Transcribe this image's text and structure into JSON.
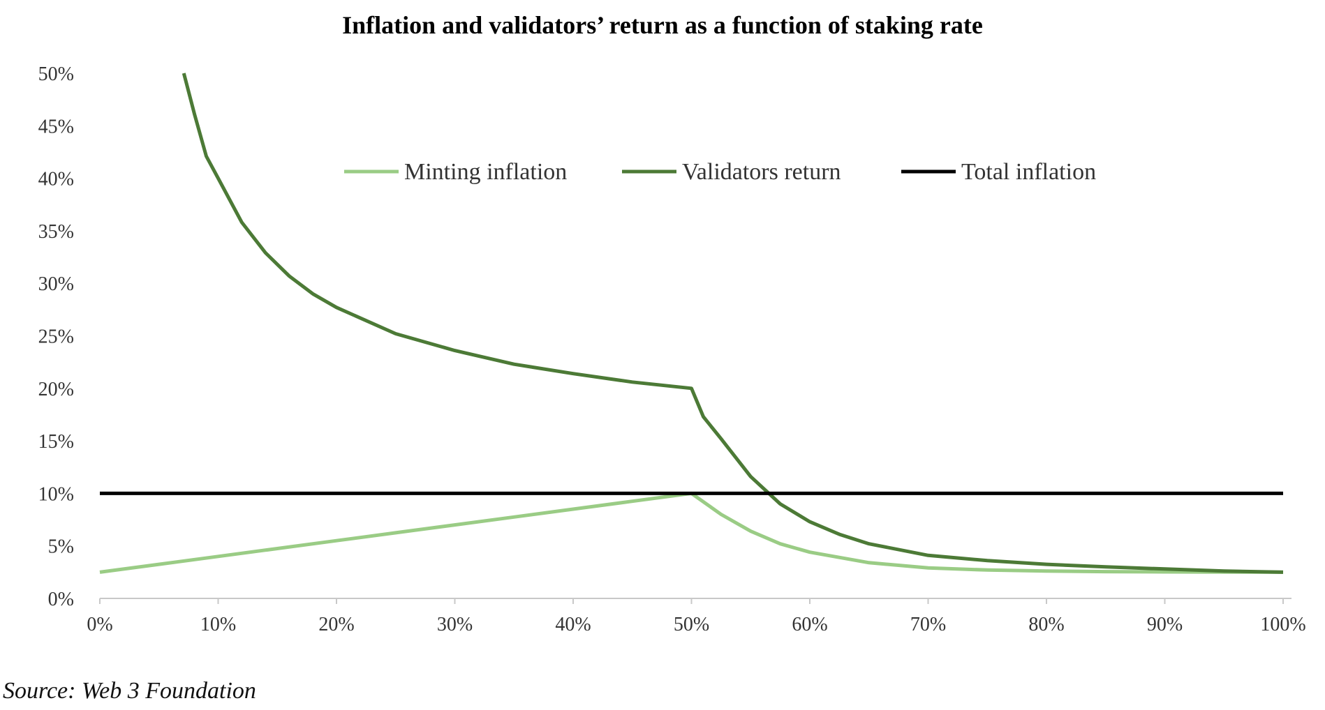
{
  "chart_data": {
    "type": "line",
    "title": "Inflation and validators’ return as a function of staking rate",
    "xlabel": "",
    "ylabel": "",
    "xlim": [
      0,
      100
    ],
    "ylim": [
      0,
      50
    ],
    "x_ticks": [
      0,
      10,
      20,
      30,
      40,
      50,
      60,
      70,
      80,
      90,
      100
    ],
    "x_tick_labels": [
      "0%",
      "10%",
      "20%",
      "30%",
      "40%",
      "50%",
      "60%",
      "70%",
      "80%",
      "90%",
      "100%"
    ],
    "y_ticks": [
      0,
      5,
      10,
      15,
      20,
      25,
      30,
      35,
      40,
      45,
      50
    ],
    "y_tick_labels": [
      "0%",
      "5%",
      "10%",
      "15%",
      "20%",
      "25%",
      "30%",
      "35%",
      "40%",
      "45%",
      "50%"
    ],
    "grid": false,
    "legend_position": "top-center",
    "series": [
      {
        "name": "Minting inflation",
        "color": "#9acc85",
        "x": [
          0,
          5,
          10,
          15,
          20,
          25,
          30,
          35,
          40,
          45,
          50,
          52.5,
          55,
          57.5,
          60,
          65,
          70,
          75,
          80,
          85,
          90,
          95,
          100
        ],
        "y": [
          2.5,
          3.25,
          4.0,
          4.75,
          5.5,
          6.25,
          7.0,
          7.75,
          8.5,
          9.25,
          10.0,
          8.0,
          6.4,
          5.2,
          4.4,
          3.4,
          2.9,
          2.7,
          2.6,
          2.55,
          2.52,
          2.51,
          2.5
        ]
      },
      {
        "name": "Validators return",
        "color": "#4c7a36",
        "x": [
          7.1,
          8,
          9,
          10,
          12,
          14,
          16,
          18,
          20,
          25,
          30,
          35,
          40,
          45,
          50,
          51,
          52.5,
          55,
          57.5,
          60,
          62.5,
          65,
          70,
          75,
          80,
          85,
          90,
          95,
          100
        ],
        "y": [
          50,
          46.1,
          42.1,
          40.0,
          35.8,
          32.9,
          30.7,
          29.0,
          27.7,
          25.2,
          23.6,
          22.3,
          21.4,
          20.6,
          20.0,
          17.3,
          15.2,
          11.6,
          9.0,
          7.3,
          6.1,
          5.2,
          4.1,
          3.6,
          3.25,
          3.0,
          2.8,
          2.6,
          2.5
        ]
      },
      {
        "name": "Total inflation",
        "color": "#000000",
        "x": [
          0,
          100
        ],
        "y": [
          10,
          10
        ]
      }
    ]
  },
  "source_note": "Source: Web 3 Foundation"
}
